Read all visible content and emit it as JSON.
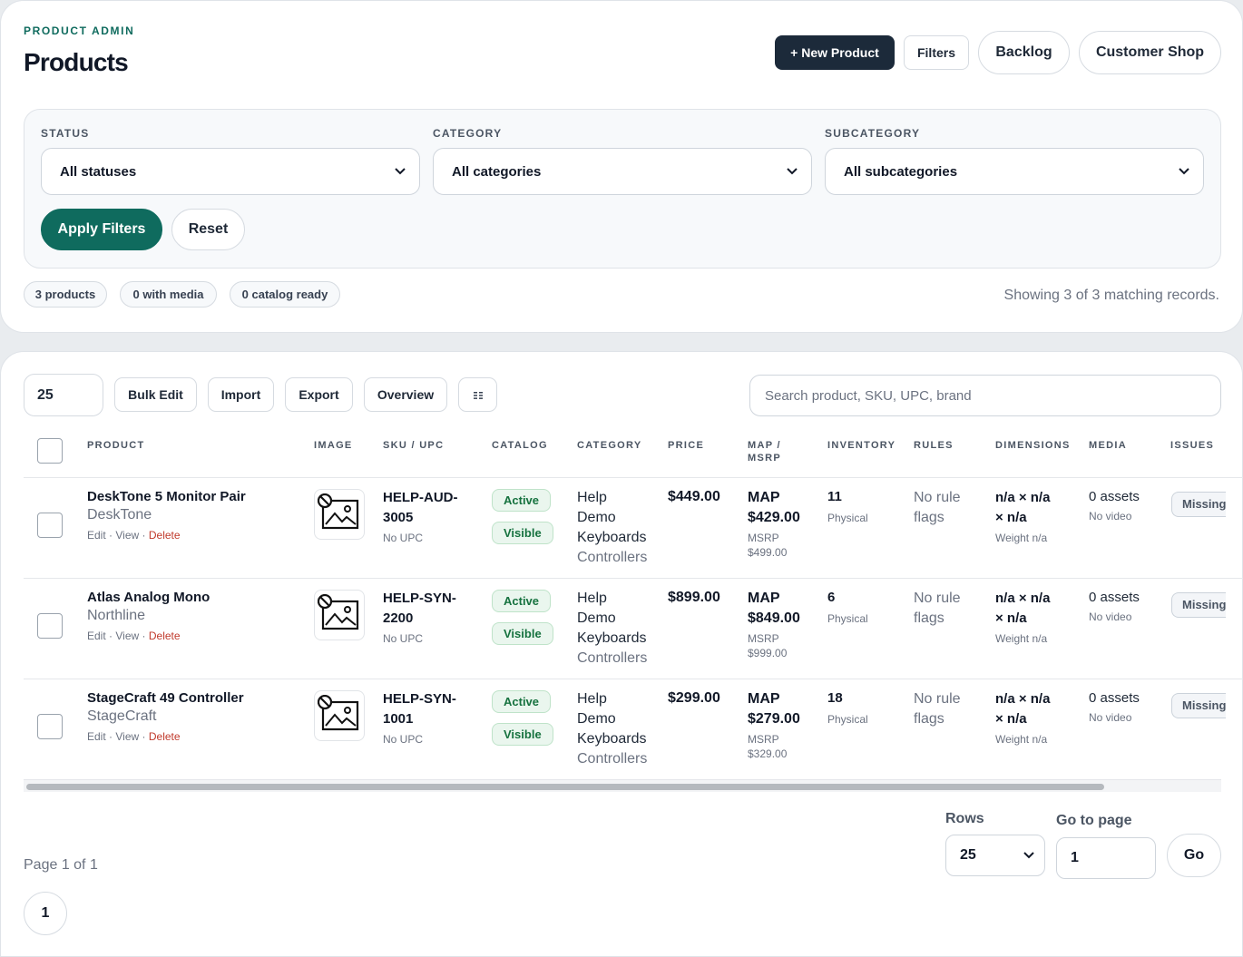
{
  "header": {
    "eyebrow": "PRODUCT ADMIN",
    "title": "Products",
    "buttons": {
      "new_product": "+ New Product",
      "filters": "Filters",
      "backlog": "Backlog",
      "customer_shop": "Customer Shop"
    }
  },
  "filters": {
    "status": {
      "label": "STATUS",
      "value": "All statuses"
    },
    "category": {
      "label": "CATEGORY",
      "value": "All categories"
    },
    "subcategory": {
      "label": "SUBCATEGORY",
      "value": "All subcategories"
    },
    "apply_label": "Apply Filters",
    "reset_label": "Reset"
  },
  "summary": {
    "chips": [
      "3 products",
      "0 with media",
      "0 catalog ready"
    ],
    "showing": "Showing 3 of 3 matching records."
  },
  "toolbar": {
    "page_size": "25",
    "bulk_edit": "Bulk Edit",
    "import": "Import",
    "export": "Export",
    "overview": "Overview",
    "columns_icon": "columns-icon",
    "search_placeholder": "Search product, SKU, UPC, brand"
  },
  "table": {
    "columns": [
      "PRODUCT",
      "IMAGE",
      "SKU / UPC",
      "CATALOG",
      "CATEGORY",
      "PRICE",
      "MAP / MSRP",
      "INVENTORY",
      "RULES",
      "DIMENSIONS",
      "MEDIA",
      "ISSUES"
    ],
    "actions": {
      "edit": "Edit",
      "view": "View",
      "delete": "Delete",
      "sep": "·"
    },
    "rows": [
      {
        "name": "DeskTone 5 Monitor Pair",
        "brand": "DeskTone",
        "sku_a": "HELP-AUD-",
        "sku_b": "3005",
        "upc": "No UPC",
        "status": "Active",
        "visibility": "Visible",
        "category": [
          "Help",
          "Demo",
          "Keyboards"
        ],
        "subcategory": "Controllers",
        "price": "$449.00",
        "map_label": "MAP",
        "map": "$429.00",
        "msrp_label": "MSRP",
        "msrp": "$499.00",
        "inventory": "11",
        "inventory_type": "Physical",
        "rules_a": "No rule",
        "rules_b": "flags",
        "dims_a": "n/a × n/a",
        "dims_b": "× n/a",
        "weight": "Weight n/a",
        "assets": "0 assets",
        "video": "No video",
        "issue": "Missing"
      },
      {
        "name": "Atlas Analog Mono",
        "brand": "Northline",
        "sku_a": "HELP-SYN-",
        "sku_b": "2200",
        "upc": "No UPC",
        "status": "Active",
        "visibility": "Visible",
        "category": [
          "Help",
          "Demo",
          "Keyboards"
        ],
        "subcategory": "Controllers",
        "price": "$899.00",
        "map_label": "MAP",
        "map": "$849.00",
        "msrp_label": "MSRP",
        "msrp": "$999.00",
        "inventory": "6",
        "inventory_type": "Physical",
        "rules_a": "No rule",
        "rules_b": "flags",
        "dims_a": "n/a × n/a",
        "dims_b": "× n/a",
        "weight": "Weight n/a",
        "assets": "0 assets",
        "video": "No video",
        "issue": "Missing"
      },
      {
        "name": "StageCraft 49 Controller",
        "brand": "StageCraft",
        "sku_a": "HELP-SYN-",
        "sku_b": "1001",
        "upc": "No UPC",
        "status": "Active",
        "visibility": "Visible",
        "category": [
          "Help",
          "Demo",
          "Keyboards"
        ],
        "subcategory": "Controllers",
        "price": "$299.00",
        "map_label": "MAP",
        "map": "$279.00",
        "msrp_label": "MSRP",
        "msrp": "$329.00",
        "inventory": "18",
        "inventory_type": "Physical",
        "rules_a": "No rule",
        "rules_b": "flags",
        "dims_a": "n/a × n/a",
        "dims_b": "× n/a",
        "weight": "Weight n/a",
        "assets": "0 assets",
        "video": "No video",
        "issue": "Missing"
      }
    ]
  },
  "pagination": {
    "page_text": "Page 1 of 1",
    "current_page": "1",
    "rows_label": "Rows",
    "rows_value": "25",
    "goto_label": "Go to page",
    "goto_value": "1",
    "go_label": "Go"
  },
  "colors": {
    "accent": "#0f6b5e",
    "dark": "#1c2a3a",
    "danger": "#c0392b",
    "success": "#16723f"
  }
}
